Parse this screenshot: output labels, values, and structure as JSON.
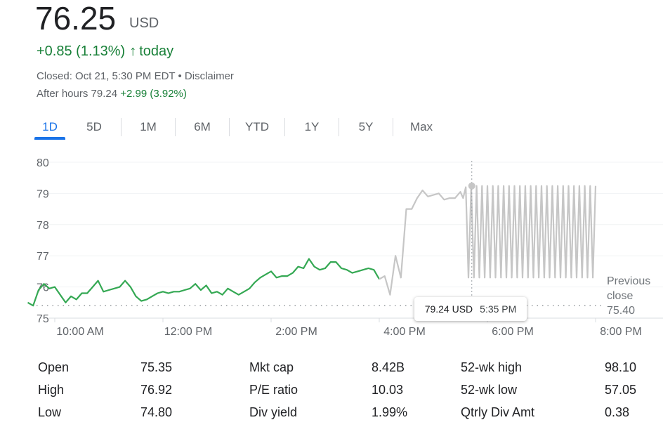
{
  "quote": {
    "price": "76.25",
    "currency": "USD",
    "change_text": "+0.85 (1.13%)",
    "change_arrow": "↑",
    "change_period": "today",
    "closed_text": "Closed: Oct 21, 5:30 PM EDT",
    "separator": " • ",
    "disclaimer": "Disclaimer",
    "after_hours_label": "After hours 79.24",
    "after_hours_change": "+2.99 (3.92%)",
    "accent_color": "#188038"
  },
  "tabs": [
    "1D",
    "5D",
    "1M",
    "6M",
    "YTD",
    "1Y",
    "5Y",
    "Max"
  ],
  "active_tab": "1D",
  "tooltip": {
    "value": "79.24 USD",
    "time": "5:35 PM"
  },
  "previous_close": {
    "line1": "Previous",
    "line2": "close",
    "value": "75.40"
  },
  "chart_data": {
    "type": "line",
    "title": "",
    "xlabel": "",
    "ylabel": "",
    "ylim": [
      75,
      80
    ],
    "y_ticks": [
      "80",
      "79",
      "78",
      "77",
      "76",
      "75"
    ],
    "x_ticks": [
      "10:00 AM",
      "12:00 PM",
      "2:00 PM",
      "4:00 PM",
      "6:00 PM",
      "8:00 PM"
    ],
    "x_tick_hours": [
      10,
      12,
      14,
      16,
      18,
      20
    ],
    "x_unit": "hours",
    "previous_close": 75.4,
    "grid": true,
    "series": [
      {
        "color": "#34a853",
        "x": [
          9.5,
          9.6,
          9.7,
          9.8,
          9.9,
          10.0,
          10.1,
          10.2,
          10.3,
          10.4,
          10.5,
          10.6,
          10.7,
          10.8,
          10.9,
          11.0,
          11.1,
          11.2,
          11.3,
          11.4,
          11.5,
          11.6,
          11.7,
          11.8,
          11.9,
          12.0,
          12.1,
          12.2,
          12.3,
          12.4,
          12.5,
          12.6,
          12.7,
          12.8,
          12.9,
          13.0,
          13.1,
          13.2,
          13.3,
          13.4,
          13.5,
          13.6,
          13.7,
          13.8,
          13.9,
          14.0,
          14.1,
          14.2,
          14.3,
          14.4,
          14.5,
          14.6,
          14.7,
          14.8,
          14.9,
          15.0,
          15.1,
          15.2,
          15.3,
          15.4,
          15.5,
          15.6,
          15.7,
          15.8,
          15.9,
          16.0
        ],
        "y": [
          75.5,
          75.4,
          75.9,
          76.1,
          75.95,
          76.0,
          75.75,
          75.5,
          75.7,
          75.6,
          75.8,
          75.8,
          76.0,
          76.2,
          75.85,
          75.9,
          75.95,
          76.0,
          76.2,
          76.0,
          75.7,
          75.55,
          75.6,
          75.7,
          75.8,
          75.85,
          75.8,
          75.85,
          75.85,
          75.9,
          75.95,
          76.1,
          75.9,
          76.05,
          75.8,
          75.85,
          75.75,
          75.95,
          75.85,
          75.75,
          75.85,
          75.95,
          76.15,
          76.3,
          76.4,
          76.5,
          76.3,
          76.35,
          76.35,
          76.45,
          76.65,
          76.6,
          76.9,
          76.65,
          76.55,
          76.6,
          76.8,
          76.8,
          76.6,
          76.55,
          76.45,
          76.5,
          76.55,
          76.6,
          76.55,
          76.25
        ]
      },
      {
        "color": "#c6c6c6",
        "x": [
          16.0,
          16.1,
          16.2,
          16.3,
          16.4,
          16.5,
          16.6,
          16.7,
          16.8,
          16.9,
          17.0,
          17.1,
          17.2,
          17.3,
          17.4,
          17.5,
          17.55,
          17.6,
          17.65,
          17.7,
          17.75,
          17.8,
          17.85,
          17.9,
          17.95,
          18.0,
          18.05,
          18.1,
          18.15,
          18.2,
          18.25,
          18.3,
          18.35,
          18.4,
          18.45,
          18.5,
          18.55,
          18.6,
          18.65,
          18.7,
          18.75,
          18.8,
          18.85,
          18.9,
          18.95,
          19.0,
          19.05,
          19.1,
          19.15,
          19.2,
          19.25,
          19.3,
          19.35,
          19.4,
          19.45,
          19.5,
          19.55,
          19.6,
          19.65,
          19.7,
          19.75,
          19.8,
          19.85,
          19.9,
          19.95,
          20.0
        ],
        "y": [
          76.25,
          76.35,
          75.75,
          77.0,
          76.3,
          78.5,
          78.5,
          78.85,
          79.1,
          78.9,
          78.95,
          79.0,
          78.8,
          78.85,
          78.85,
          79.05,
          78.85,
          79.2,
          76.3,
          79.24,
          76.3,
          79.24,
          76.3,
          79.24,
          76.3,
          79.24,
          76.3,
          79.24,
          76.3,
          79.24,
          76.3,
          79.24,
          76.3,
          79.24,
          76.3,
          79.24,
          76.3,
          79.24,
          76.3,
          79.24,
          76.3,
          79.24,
          76.3,
          79.24,
          76.3,
          79.24,
          76.3,
          79.24,
          76.3,
          79.24,
          76.3,
          79.24,
          76.3,
          79.24,
          76.3,
          79.24,
          76.3,
          79.24,
          76.3,
          79.24,
          76.3,
          79.24,
          76.3,
          79.24,
          76.3,
          79.24
        ]
      }
    ]
  },
  "stats": [
    {
      "label": "Open",
      "value": "75.35"
    },
    {
      "label": "High",
      "value": "76.92"
    },
    {
      "label": "Low",
      "value": "74.80"
    },
    {
      "label": "Mkt cap",
      "value": "8.42B"
    },
    {
      "label": "P/E ratio",
      "value": "10.03"
    },
    {
      "label": "Div yield",
      "value": "1.99%"
    },
    {
      "label": "52-wk high",
      "value": "98.10"
    },
    {
      "label": "52-wk low",
      "value": "57.05"
    },
    {
      "label": "Qtrly Div Amt",
      "value": "0.38"
    }
  ]
}
